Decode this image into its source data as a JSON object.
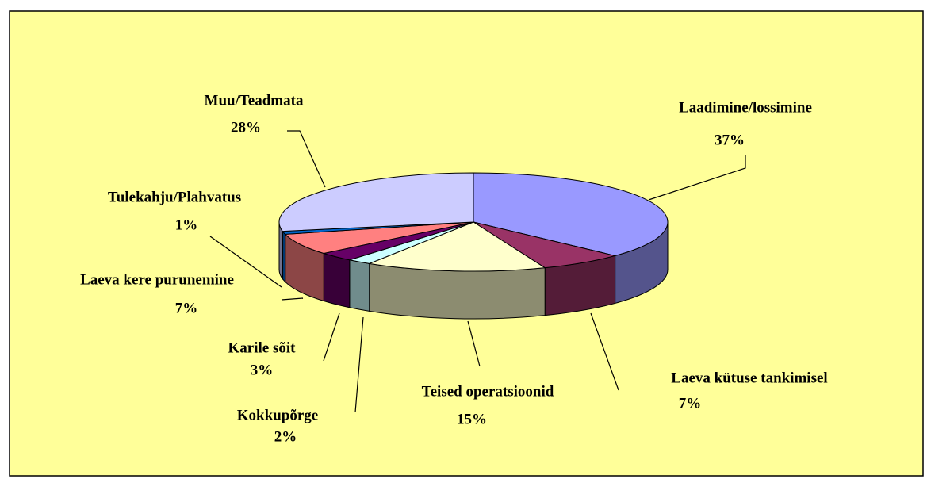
{
  "chart_data": {
    "type": "pie",
    "categories": [
      "Laadimine/lossimine",
      "Laeva kütuse tankimisel",
      "Teised operatsioonid",
      "Kokkupõrge",
      "Karile sõit",
      "Laeva kere purunemine",
      "Tulekahju/Plahvatus",
      "Muu/Teadmata"
    ],
    "values": [
      37,
      7,
      15,
      2,
      3,
      7,
      1,
      28
    ],
    "value_labels": [
      "37%",
      "7%",
      "15%",
      "2%",
      "3%",
      "7%",
      "1%",
      "28%"
    ],
    "colors": [
      "#9999ff",
      "#993366",
      "#ffffcc",
      "#ccffff",
      "#660066",
      "#ff8080",
      "#0066cc",
      "#ccccff"
    ]
  }
}
